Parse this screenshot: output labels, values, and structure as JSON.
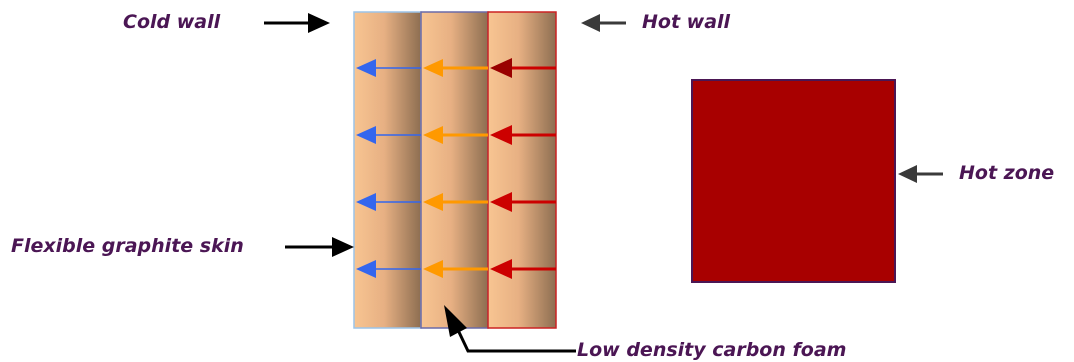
{
  "labels": {
    "cold_wall": "Cold wall",
    "hot_wall": "Hot wall",
    "hot_zone": "Hot zone",
    "skin": "Flexible graphite skin",
    "foam": "Low density carbon foam"
  },
  "colors": {
    "label_text": "#4b1654",
    "hot_zone_fill": "#a80000",
    "cold_flux": "#3366ee",
    "mid_flux": "#ff9900",
    "hot_flux": "#cc0000",
    "pointer": "#000000"
  },
  "layers": [
    "graphite-skin",
    "insulation-foam",
    "hot-face-layer"
  ],
  "flux_rows": 4
}
